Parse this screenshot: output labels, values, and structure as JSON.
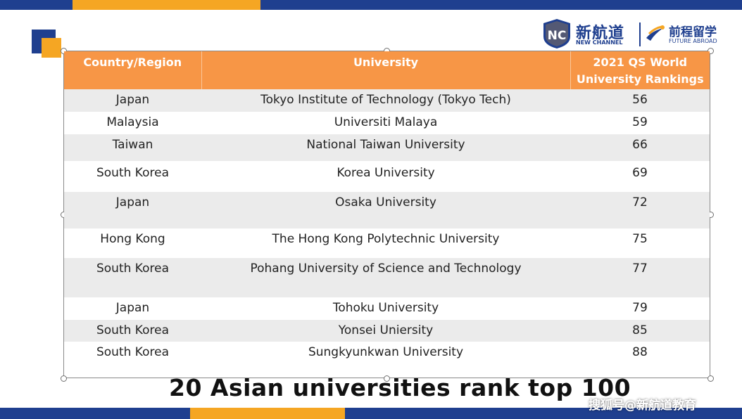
{
  "colors": {
    "navy": "#1f3f8f",
    "orange": "#f5a623",
    "header_orange": "#f79646",
    "row_shade": "#ebebeb"
  },
  "logo": {
    "nc_mark": "NC",
    "nc_chinese": "新航道",
    "nc_english": "NEW CHANNEL",
    "fa_chinese": "前程留学",
    "fa_english": "FUTURE ABROAD"
  },
  "table": {
    "headers": [
      "Country/Region",
      "University",
      "2021 QS World University Rankings"
    ],
    "rows": [
      {
        "country": "Japan",
        "university": "Tokyo Institute of Technology (Tokyo Tech)",
        "rank": "56"
      },
      {
        "country": "Malaysia",
        "university": "Universiti Malaya",
        "rank": "59"
      },
      {
        "country": "Taiwan",
        "university": "National Taiwan University",
        "rank": "66"
      },
      {
        "country": "South Korea",
        "university": "Korea University",
        "rank": "69"
      },
      {
        "country": "Japan",
        "university": "Osaka University",
        "rank": "72"
      },
      {
        "country": "Hong Kong",
        "university": "The Hong Kong Polytechnic University",
        "rank": "75"
      },
      {
        "country": "South Korea",
        "university": "Pohang University of Science and Technology",
        "rank": "77"
      },
      {
        "country": "Japan",
        "university": "Tohoku University",
        "rank": "79"
      },
      {
        "country": "South Korea",
        "university": "Yonsei Uniersity",
        "rank": "85"
      },
      {
        "country": "South Korea",
        "university": "Sungkyunkwan University",
        "rank": "88"
      }
    ]
  },
  "caption": "20 Asian universities rank top 100",
  "watermark": "搜狐号@新航道教育"
}
